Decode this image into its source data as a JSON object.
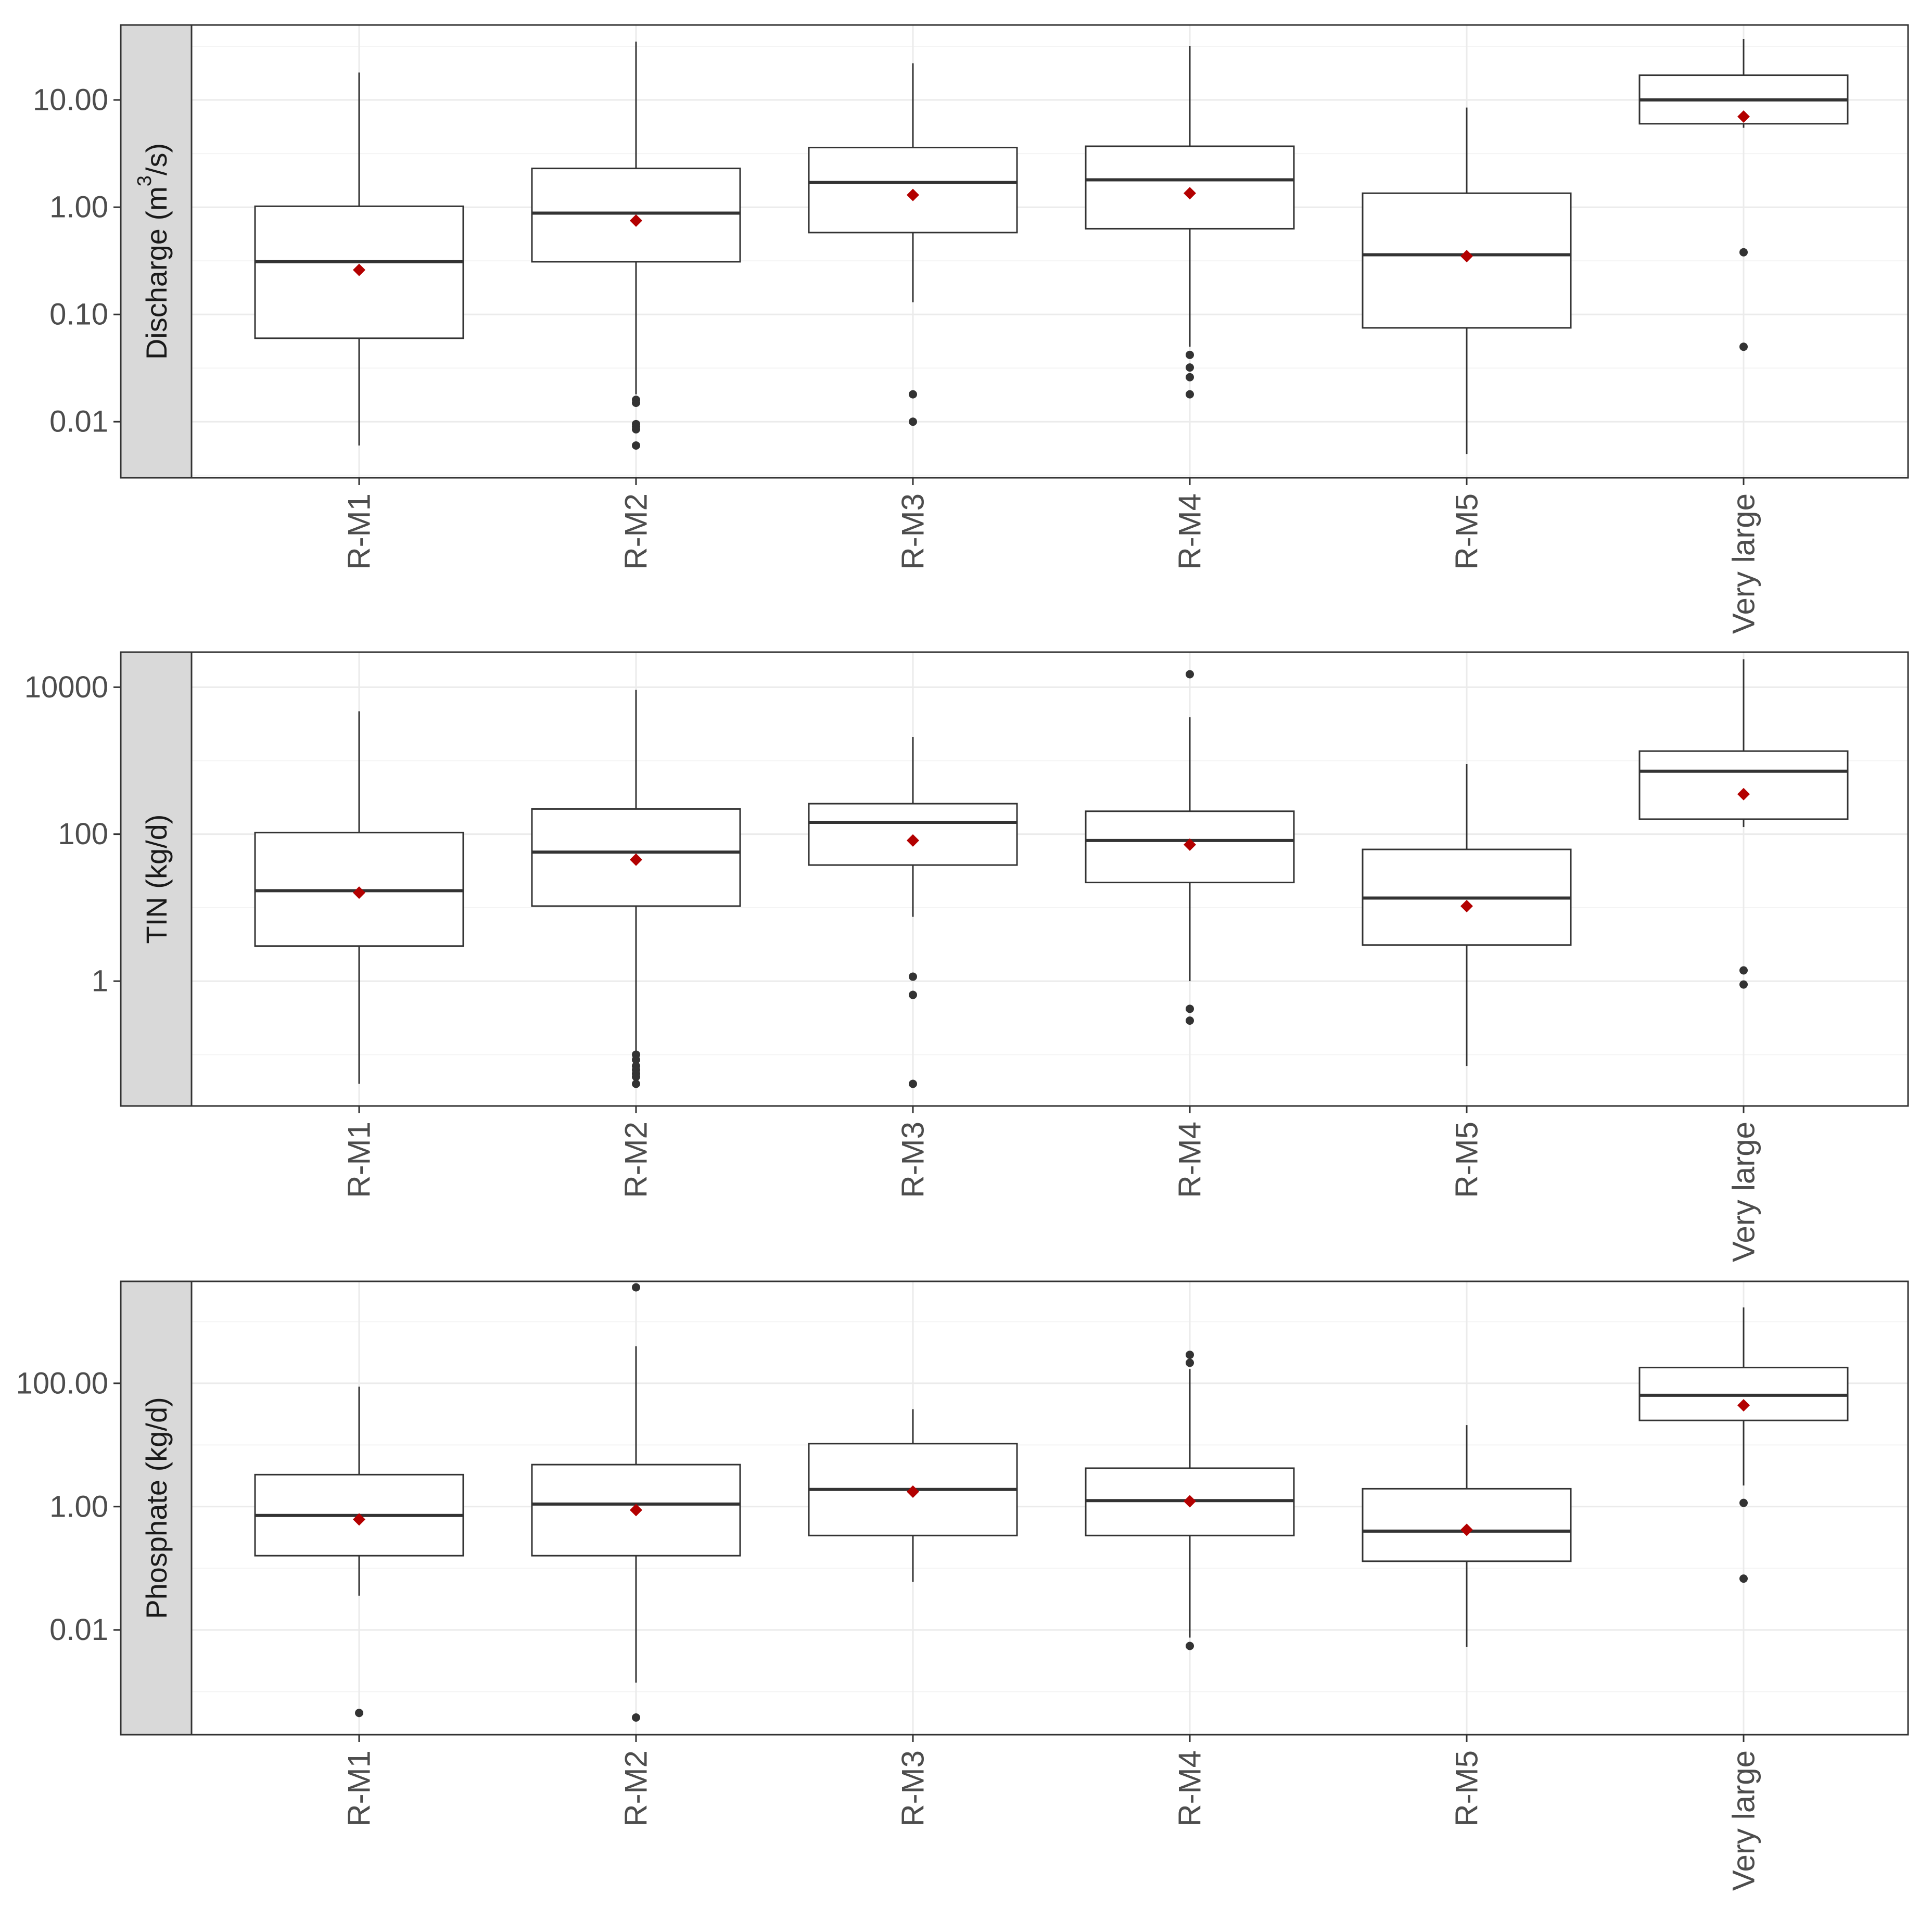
{
  "colors": {
    "panel_border": "#333333",
    "grid_major": "#ebebeb",
    "grid_minor": "#f4f4f4",
    "strip_fill": "#d9d9d9",
    "box_line": "#333333",
    "outlier": "#333333",
    "mean_marker": "#b30000",
    "tick_text": "#4d4d4d",
    "strip_text": "#1a1a1a"
  },
  "chart_data": [
    {
      "type": "box",
      "scale": "log10",
      "ylabel": {
        "main": "Discharge (m",
        "sup": "3",
        "tail": "/s)"
      },
      "ylim": [
        0.003,
        50
      ],
      "yticks": [
        0.01,
        0.1,
        1,
        10
      ],
      "yticklabels": [
        "0.01",
        "0.10",
        "1.00",
        "10.00"
      ],
      "categories": [
        "R-M1",
        "R-M2",
        "R-M3",
        "R-M4",
        "R-M5",
        "Very large"
      ],
      "boxes": [
        {
          "q1": 0.06,
          "median": 0.31,
          "q3": 1.02,
          "whisker_low": 0.006,
          "whisker_high": 18,
          "mean": 0.26,
          "outliers": []
        },
        {
          "q1": 0.31,
          "median": 0.88,
          "q3": 2.3,
          "whisker_low": 0.018,
          "whisker_high": 35,
          "mean": 0.75,
          "outliers": [
            0.016,
            0.015,
            0.0095,
            0.009,
            0.0085,
            0.006
          ]
        },
        {
          "q1": 0.58,
          "median": 1.7,
          "q3": 3.6,
          "whisker_low": 0.13,
          "whisker_high": 22,
          "mean": 1.3,
          "outliers": [
            0.018,
            0.01
          ]
        },
        {
          "q1": 0.63,
          "median": 1.8,
          "q3": 3.7,
          "whisker_low": 0.05,
          "whisker_high": 32,
          "mean": 1.35,
          "outliers": [
            0.042,
            0.032,
            0.026,
            0.018
          ]
        },
        {
          "q1": 0.075,
          "median": 0.36,
          "q3": 1.35,
          "whisker_low": 0.005,
          "whisker_high": 8.5,
          "mean": 0.35,
          "outliers": []
        },
        {
          "q1": 6,
          "median": 10,
          "q3": 17,
          "whisker_low": 5.5,
          "whisker_high": 37,
          "mean": 7,
          "outliers": [
            0.38,
            0.05
          ]
        }
      ]
    },
    {
      "type": "box",
      "scale": "log10",
      "ylabel": {
        "main": "TIN (kg/d)",
        "sup": "",
        "tail": ""
      },
      "ylim": [
        0.02,
        30000
      ],
      "yticks": [
        1,
        100,
        10000
      ],
      "yticklabels": [
        "1",
        "100",
        "10000"
      ],
      "categories": [
        "R-M1",
        "R-M2",
        "R-M3",
        "R-M4",
        "R-M5",
        "Very large"
      ],
      "boxes": [
        {
          "q1": 3,
          "median": 17,
          "q3": 105,
          "whisker_low": 0.04,
          "whisker_high": 4700,
          "mean": 16,
          "outliers": []
        },
        {
          "q1": 10.5,
          "median": 57,
          "q3": 220,
          "whisker_low": 0.11,
          "whisker_high": 9200,
          "mean": 45,
          "outliers": [
            0.1,
            0.085,
            0.07,
            0.062,
            0.055,
            0.05,
            0.04
          ]
        },
        {
          "q1": 38,
          "median": 145,
          "q3": 260,
          "whisker_low": 7.5,
          "whisker_high": 2100,
          "mean": 82,
          "outliers": [
            1.15,
            0.65,
            0.04
          ]
        },
        {
          "q1": 22,
          "median": 82,
          "q3": 205,
          "whisker_low": 1.0,
          "whisker_high": 3900,
          "mean": 72,
          "outliers": [
            15000,
            0.42,
            0.29
          ]
        },
        {
          "q1": 3.1,
          "median": 13.5,
          "q3": 62,
          "whisker_low": 0.07,
          "whisker_high": 900,
          "mean": 10.5,
          "outliers": []
        },
        {
          "q1": 160,
          "median": 720,
          "q3": 1350,
          "whisker_low": 125,
          "whisker_high": 24000,
          "mean": 350,
          "outliers": [
            1.4,
            0.9
          ]
        }
      ]
    },
    {
      "type": "box",
      "scale": "log10",
      "ylabel": {
        "main": "Phosphate (kg/d)",
        "sup": "",
        "tail": ""
      },
      "ylim": [
        0.0002,
        4500
      ],
      "yticks": [
        0.01,
        1,
        100
      ],
      "yticklabels": [
        "0.01",
        "1.00",
        "100.00"
      ],
      "categories": [
        "R-M1",
        "R-M2",
        "R-M3",
        "R-M4",
        "R-M5",
        "Very large"
      ],
      "boxes": [
        {
          "q1": 0.16,
          "median": 0.72,
          "q3": 3.3,
          "whisker_low": 0.036,
          "whisker_high": 88,
          "mean": 0.62,
          "outliers": [
            0.00045
          ]
        },
        {
          "q1": 0.16,
          "median": 1.1,
          "q3": 4.8,
          "whisker_low": 0.0014,
          "whisker_high": 400,
          "mean": 0.88,
          "outliers": [
            3600,
            0.00038
          ]
        },
        {
          "q1": 0.34,
          "median": 1.9,
          "q3": 10.5,
          "whisker_low": 0.06,
          "whisker_high": 38,
          "mean": 1.75,
          "outliers": []
        },
        {
          "q1": 0.34,
          "median": 1.25,
          "q3": 4.2,
          "whisker_low": 0.0075,
          "whisker_high": 170,
          "mean": 1.22,
          "outliers": [
            290,
            215,
            0.0055
          ]
        },
        {
          "q1": 0.13,
          "median": 0.4,
          "q3": 1.95,
          "whisker_low": 0.0053,
          "whisker_high": 21,
          "mean": 0.42,
          "outliers": []
        },
        {
          "q1": 25,
          "median": 64,
          "q3": 180,
          "whisker_low": 2.2,
          "whisker_high": 1700,
          "mean": 44,
          "outliers": [
            1.15,
            0.068
          ]
        }
      ]
    }
  ]
}
